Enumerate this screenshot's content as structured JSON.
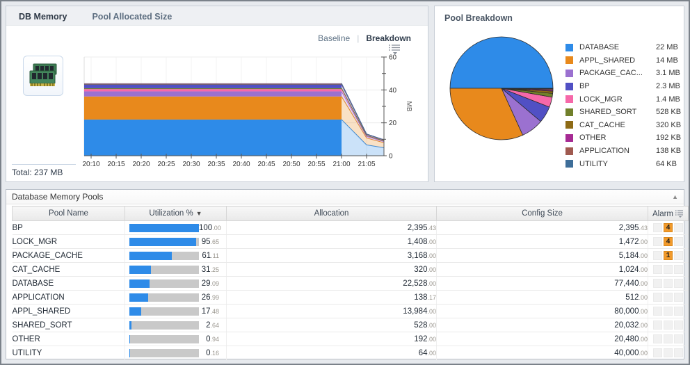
{
  "colors": {
    "accent_blue": "#2e8be8",
    "bar_track": "#c9c9c9",
    "alarm_orange": "#f29a2b",
    "axis": "#555555",
    "grid": "#ececec"
  },
  "db_memory_panel": {
    "tabs": [
      {
        "label": "DB Memory",
        "active": true
      },
      {
        "label": "Pool Allocated Size",
        "active": false
      }
    ],
    "view_toggle": {
      "options": [
        "Baseline",
        "Breakdown"
      ],
      "selected": "Breakdown"
    },
    "total_label": "Total: 237 MB",
    "chart_data": {
      "type": "area",
      "stacked": true,
      "title": "",
      "xlabel": "",
      "ylabel": "MB",
      "ylim": [
        0,
        60
      ],
      "y_ticks": [
        0,
        20,
        40,
        60
      ],
      "y_minor_ticks": [
        10,
        30,
        50
      ],
      "x_ticks": [
        "20:10",
        "20:15",
        "20:20",
        "20:25",
        "20:30",
        "20:35",
        "20:40",
        "20:45",
        "20:50",
        "20:55",
        "21:00",
        "21:05"
      ],
      "series": [
        {
          "name": "DATABASE",
          "value_mb": 22.0,
          "color": "#2e8be8"
        },
        {
          "name": "APPL_SHARED",
          "value_mb": 14.0,
          "color": "#e8891c"
        },
        {
          "name": "PACKAGE_CACHE",
          "value_mb": 3.1,
          "color": "#9b71d0"
        },
        {
          "name": "LOCK_MGR",
          "value_mb": 1.4,
          "color": "#f668a9"
        },
        {
          "name": "SHARED_SORT",
          "value_mb": 0.52,
          "color": "#71802b"
        },
        {
          "name": "BP",
          "value_mb": 2.3,
          "color": "#5150c4"
        },
        {
          "name": "CAT_CACHE",
          "value_mb": 0.31,
          "color": "#8e6b16"
        },
        {
          "name": "APPLICATION",
          "value_mb": 0.13,
          "color": "#a05a50"
        },
        {
          "name": "OTHER",
          "value_mb": 0.19,
          "color": "#a62a93"
        },
        {
          "name": "UTILITY",
          "value_mb": 0.06,
          "color": "#3e6e99"
        }
      ],
      "projection": {
        "starts_at": "21:00",
        "fraction_at_21_05": 0.3,
        "fraction_at_edge": 0.22
      }
    }
  },
  "pool_breakdown_panel": {
    "title": "Pool Breakdown",
    "chart_data": {
      "type": "pie",
      "legend_position": "right",
      "slices": [
        {
          "label": "DATABASE",
          "value_label": "22 MB",
          "value_mb": 22.0,
          "color": "#2e8be8"
        },
        {
          "label": "APPL_SHARED",
          "value_label": "14 MB",
          "value_mb": 14.0,
          "color": "#e8891c"
        },
        {
          "label": "PACKAGE_CAC...",
          "value_label": "3.1 MB",
          "value_mb": 3.1,
          "color": "#9b71d0"
        },
        {
          "label": "BP",
          "value_label": "2.3 MB",
          "value_mb": 2.3,
          "color": "#5150c4"
        },
        {
          "label": "LOCK_MGR",
          "value_label": "1.4 MB",
          "value_mb": 1.4,
          "color": "#f668a9"
        },
        {
          "label": "SHARED_SORT",
          "value_label": "528 KB",
          "value_mb": 0.516,
          "color": "#71802b"
        },
        {
          "label": "CAT_CACHE",
          "value_label": "320 KB",
          "value_mb": 0.3125,
          "color": "#8e6b16"
        },
        {
          "label": "OTHER",
          "value_label": "192 KB",
          "value_mb": 0.1875,
          "color": "#a62a93"
        },
        {
          "label": "APPLICATION",
          "value_label": "138 KB",
          "value_mb": 0.1348,
          "color": "#a05a50"
        },
        {
          "label": "UTILITY",
          "value_label": "64 KB",
          "value_mb": 0.0625,
          "color": "#3e6e99"
        }
      ]
    }
  },
  "pools_table_panel": {
    "title": "Database Memory Pools",
    "columns": [
      "Pool Name",
      "Utilization %",
      "Allocation",
      "Config Size",
      "Alarm"
    ],
    "sorted_column": "Utilization %",
    "sort_direction": "desc",
    "rows": [
      {
        "pool": "BP",
        "utilization": "100.00",
        "utilization_pct": 100.0,
        "allocation": "2,395.43",
        "config_size": "2,395.43",
        "alarms": 4
      },
      {
        "pool": "LOCK_MGR",
        "utilization": "95.65",
        "utilization_pct": 95.65,
        "allocation": "1,408.00",
        "config_size": "1,472.00",
        "alarms": 4
      },
      {
        "pool": "PACKAGE_CACHE",
        "utilization": "61.11",
        "utilization_pct": 61.11,
        "allocation": "3,168.00",
        "config_size": "5,184.00",
        "alarms": 1
      },
      {
        "pool": "CAT_CACHE",
        "utilization": "31.25",
        "utilization_pct": 31.25,
        "allocation": "320.00",
        "config_size": "1,024.00",
        "alarms": null
      },
      {
        "pool": "DATABASE",
        "utilization": "29.09",
        "utilization_pct": 29.09,
        "allocation": "22,528.00",
        "config_size": "77,440.00",
        "alarms": null
      },
      {
        "pool": "APPLICATION",
        "utilization": "26.99",
        "utilization_pct": 26.99,
        "allocation": "138.17",
        "config_size": "512.00",
        "alarms": null
      },
      {
        "pool": "APPL_SHARED",
        "utilization": "17.48",
        "utilization_pct": 17.48,
        "allocation": "13,984.00",
        "config_size": "80,000.00",
        "alarms": null
      },
      {
        "pool": "SHARED_SORT",
        "utilization": "2.64",
        "utilization_pct": 2.64,
        "allocation": "528.00",
        "config_size": "20,032.00",
        "alarms": null
      },
      {
        "pool": "OTHER",
        "utilization": "0.94",
        "utilization_pct": 0.94,
        "allocation": "192.00",
        "config_size": "20,480.00",
        "alarms": null
      },
      {
        "pool": "UTILITY",
        "utilization": "0.16",
        "utilization_pct": 0.16,
        "allocation": "64.00",
        "config_size": "40,000.00",
        "alarms": null
      }
    ]
  }
}
